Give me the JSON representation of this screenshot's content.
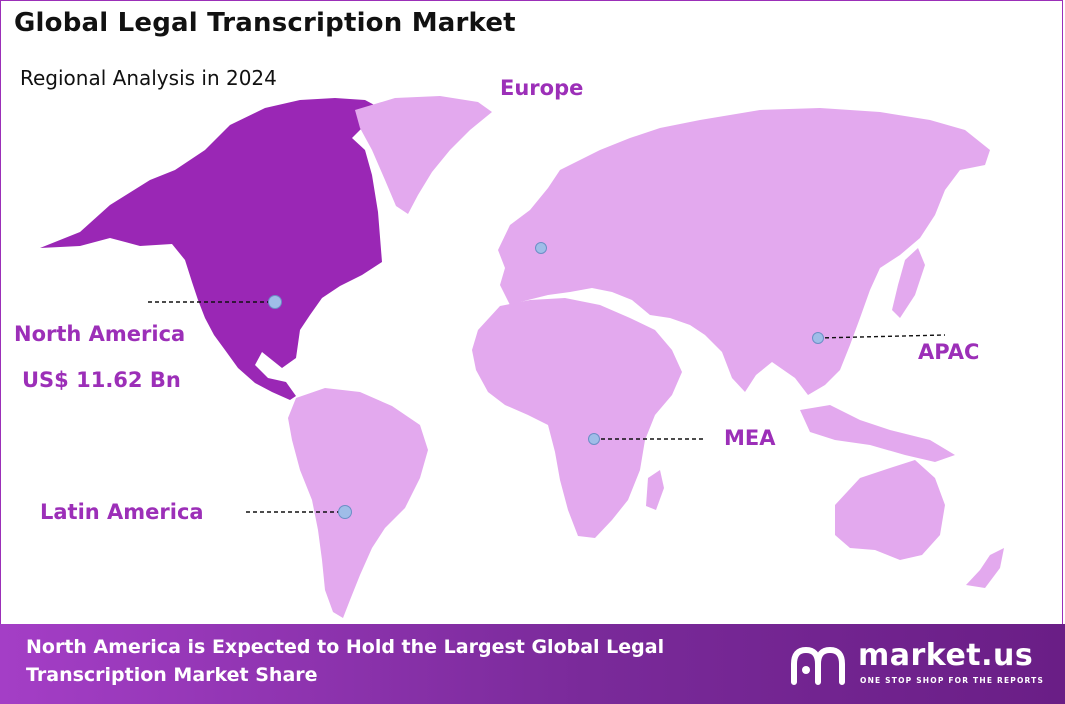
{
  "header": {
    "title": "Global Legal Transcription Market",
    "subtitle": "Regional Analysis in 2024"
  },
  "regions": {
    "north_america": {
      "label": "North America",
      "value": "US$ 11.62 Bn",
      "highlighted": true
    },
    "europe": {
      "label": "Europe"
    },
    "apac": {
      "label": "APAC"
    },
    "mea": {
      "label": "MEA"
    },
    "latin_america": {
      "label": "Latin America"
    }
  },
  "footer": {
    "text": "North America is Expected to Hold the Largest Global Legal Transcription Market Share"
  },
  "brand": {
    "name": "market.us",
    "tagline": "ONE STOP SHOP FOR THE REPORTS"
  },
  "colors": {
    "highlight_region": "#9a27b5",
    "other_regions": "#e3a9ee",
    "label_color": "#9c2fb8",
    "marker": "#9fbde8",
    "footer_bg": "#8a33aa"
  }
}
